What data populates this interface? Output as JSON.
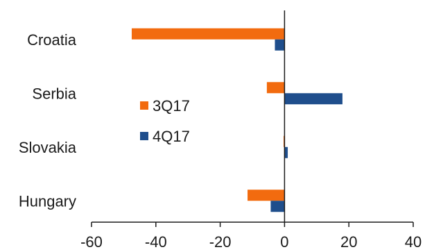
{
  "chart_data": {
    "type": "bar",
    "orientation": "horizontal",
    "categories": [
      "Croatia",
      "Serbia",
      "Slovakia",
      "Hungary"
    ],
    "series": [
      {
        "name": "3Q17",
        "color": "#f26b0f",
        "values": [
          -47.5,
          -5.5,
          -0.3,
          -11.5
        ]
      },
      {
        "name": "4Q17",
        "color": "#1f4e8c",
        "values": [
          -3,
          18,
          1,
          -4.3
        ]
      }
    ],
    "xlim": [
      -60,
      40
    ],
    "xticks": [
      -60,
      -40,
      -20,
      0,
      20,
      40
    ],
    "xtick_labels": [
      "-60",
      "-40",
      "-20",
      "0",
      "20",
      "40"
    ],
    "grid": false,
    "legend": "center-left"
  }
}
